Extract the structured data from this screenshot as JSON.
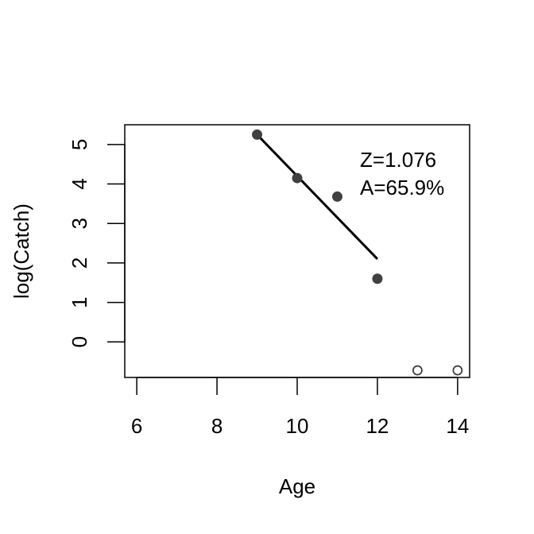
{
  "chart_data": {
    "type": "scatter",
    "xlabel": "Age",
    "ylabel": "log(Catch)",
    "xlim": [
      5.7,
      14.3
    ],
    "ylim": [
      -0.9,
      5.5
    ],
    "xticks": [
      6,
      8,
      10,
      12,
      14
    ],
    "yticks": [
      0,
      1,
      2,
      3,
      4,
      5
    ],
    "grid": false,
    "series": [
      {
        "marker": "filled-circle",
        "color": "#404040",
        "points": [
          {
            "x": 9,
            "y": 5.25
          },
          {
            "x": 10,
            "y": 4.15
          },
          {
            "x": 11,
            "y": 3.68
          },
          {
            "x": 12,
            "y": 1.6
          }
        ]
      },
      {
        "marker": "open-circle",
        "color": "#404040",
        "points": [
          {
            "x": 13,
            "y": -0.72
          },
          {
            "x": 14,
            "y": -0.72
          }
        ]
      }
    ],
    "fit_line": {
      "x1": 9,
      "y1": 5.25,
      "x2": 12,
      "y2": 2.1,
      "color": "#000000"
    },
    "annotations": [
      "Z=1.076",
      "A=65.9%"
    ]
  }
}
